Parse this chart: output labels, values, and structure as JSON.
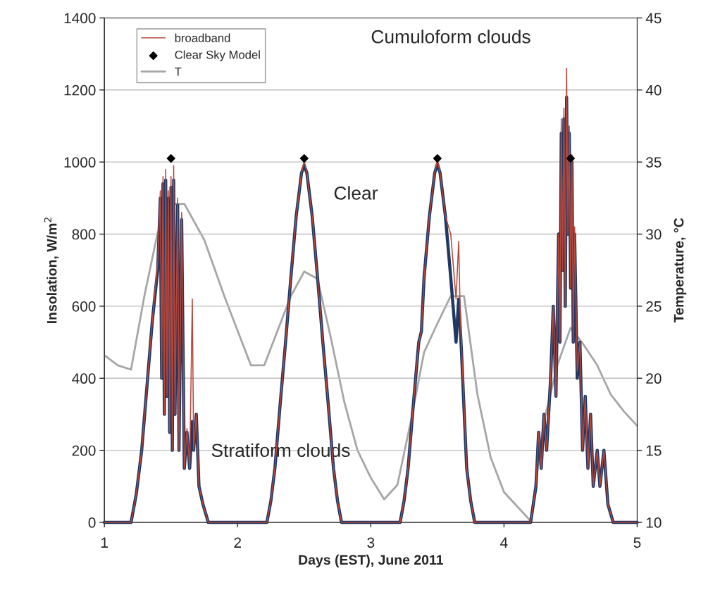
{
  "chart_data": {
    "type": "line",
    "xlabel": "Days (EST), June 2011",
    "ylabel": "Insolation, W/m$^{2}$",
    "y2label": "Temperature, °C",
    "xlim": [
      1,
      5
    ],
    "xticks": [
      1,
      2,
      3,
      4,
      5
    ],
    "ylim": [
      0,
      1400
    ],
    "yticks": [
      0,
      200,
      400,
      600,
      800,
      1000,
      1200,
      1400
    ],
    "y2lim": [
      10,
      45
    ],
    "y2ticks": [
      10,
      15,
      20,
      25,
      30,
      35,
      40,
      45
    ],
    "grid": "y",
    "legend": "top left",
    "annotations": [
      "Cumuloform clouds",
      "Clear",
      "Stratiform clouds"
    ],
    "series": [
      {
        "name": "broadband",
        "type": "line",
        "color": "#b5473a",
        "x": [
          1,
          1.2,
          1.24,
          1.28,
          1.32,
          1.36,
          1.4,
          1.42,
          1.43,
          1.44,
          1.45,
          1.46,
          1.47,
          1.48,
          1.49,
          1.5,
          1.51,
          1.52,
          1.53,
          1.55,
          1.56,
          1.58,
          1.6,
          1.62,
          1.64,
          1.66,
          1.67,
          1.69,
          1.71,
          1.74,
          1.78,
          2.22,
          2.25,
          2.28,
          2.32,
          2.36,
          2.4,
          2.44,
          2.48,
          2.5,
          2.52,
          2.56,
          2.6,
          2.64,
          2.68,
          2.72,
          2.75,
          2.78,
          3.22,
          3.25,
          3.28,
          3.32,
          3.36,
          3.38,
          3.4,
          3.44,
          3.48,
          3.5,
          3.52,
          3.56,
          3.6,
          3.64,
          3.66,
          3.67,
          3.68,
          3.72,
          3.75,
          3.78,
          4.2,
          4.24,
          4.26,
          4.28,
          4.3,
          4.32,
          4.35,
          4.37,
          4.39,
          4.41,
          4.42,
          4.43,
          4.44,
          4.45,
          4.46,
          4.47,
          4.48,
          4.49,
          4.5,
          4.51,
          4.52,
          4.53,
          4.55,
          4.57,
          4.59,
          4.61,
          4.63,
          4.65,
          4.67,
          4.7,
          4.72,
          4.75,
          4.78,
          4.82,
          5
        ],
        "values": [
          0,
          0,
          80,
          200,
          380,
          560,
          720,
          920,
          400,
          960,
          300,
          980,
          350,
          920,
          250,
          960,
          200,
          990,
          300,
          900,
          200,
          860,
          150,
          260,
          150,
          620,
          200,
          300,
          100,
          50,
          0,
          0,
          60,
          150,
          330,
          500,
          680,
          850,
          970,
          1005,
          970,
          850,
          680,
          500,
          330,
          150,
          60,
          0,
          0,
          60,
          150,
          330,
          500,
          530,
          680,
          850,
          970,
          1005,
          970,
          850,
          800,
          620,
          780,
          600,
          500,
          150,
          60,
          0,
          0,
          100,
          250,
          150,
          300,
          200,
          400,
          600,
          350,
          800,
          500,
          1120,
          700,
          1150,
          600,
          1260,
          800,
          1100,
          650,
          1020,
          500,
          820,
          420,
          500,
          200,
          350,
          150,
          300,
          100,
          200,
          100,
          200,
          50,
          0,
          0
        ]
      },
      {
        "type": "line",
        "color": "#1f3864",
        "x": [
          1,
          1.2,
          1.24,
          1.28,
          1.32,
          1.36,
          1.4,
          1.42,
          1.43,
          1.44,
          1.45,
          1.46,
          1.47,
          1.48,
          1.49,
          1.5,
          1.51,
          1.52,
          1.53,
          1.55,
          1.56,
          1.58,
          1.6,
          1.62,
          1.64,
          1.66,
          1.67,
          1.69,
          1.71,
          1.74,
          1.78,
          2.22,
          2.25,
          2.28,
          2.32,
          2.36,
          2.4,
          2.44,
          2.48,
          2.5,
          2.52,
          2.56,
          2.6,
          2.64,
          2.68,
          2.72,
          2.75,
          2.78,
          3.22,
          3.25,
          3.28,
          3.32,
          3.36,
          3.38,
          3.4,
          3.44,
          3.48,
          3.5,
          3.52,
          3.56,
          3.6,
          3.64,
          3.66,
          3.67,
          3.68,
          3.72,
          3.75,
          3.78,
          4.2,
          4.24,
          4.26,
          4.28,
          4.3,
          4.32,
          4.35,
          4.37,
          4.39,
          4.41,
          4.42,
          4.43,
          4.44,
          4.45,
          4.46,
          4.47,
          4.48,
          4.49,
          4.5,
          4.51,
          4.52,
          4.53,
          4.55,
          4.57,
          4.59,
          4.61,
          4.63,
          4.65,
          4.67,
          4.7,
          4.72,
          4.75,
          4.78,
          4.82,
          5
        ],
        "values": [
          0,
          0,
          80,
          200,
          380,
          560,
          700,
          900,
          400,
          940,
          300,
          950,
          350,
          900,
          250,
          930,
          200,
          950,
          300,
          880,
          200,
          840,
          150,
          250,
          150,
          280,
          200,
          300,
          100,
          50,
          0,
          0,
          60,
          150,
          330,
          500,
          680,
          850,
          970,
          990,
          970,
          850,
          680,
          500,
          330,
          150,
          60,
          0,
          0,
          60,
          150,
          330,
          500,
          530,
          680,
          850,
          970,
          995,
          970,
          850,
          680,
          500,
          620,
          550,
          480,
          150,
          60,
          0,
          0,
          100,
          250,
          150,
          300,
          200,
          400,
          600,
          350,
          800,
          500,
          1080,
          700,
          1120,
          600,
          1180,
          800,
          1080,
          650,
          1000,
          500,
          800,
          400,
          500,
          200,
          350,
          150,
          300,
          100,
          200,
          100,
          200,
          50,
          0,
          0
        ]
      },
      {
        "name": "Clear Sky Model",
        "type": "scatter",
        "marker": "diamond",
        "color": "#000000",
        "x": [
          1.5,
          2.5,
          3.5,
          4.5
        ],
        "values": [
          1010,
          1010,
          1010,
          1010
        ]
      },
      {
        "name": "T",
        "type": "line",
        "axis": "y2",
        "color": "#a6a6a6",
        "x": [
          1,
          1.1,
          1.2,
          1.3,
          1.4,
          1.5,
          1.6,
          1.75,
          1.9,
          2.0,
          2.1,
          2.2,
          2.3,
          2.4,
          2.5,
          2.6,
          2.7,
          2.8,
          2.9,
          3.0,
          3.1,
          3.2,
          3.3,
          3.4,
          3.5,
          3.6,
          3.7,
          3.8,
          3.9,
          4.0,
          4.1,
          4.2,
          4.3,
          4.4,
          4.5,
          4.6,
          4.7,
          4.8,
          4.9,
          5.0
        ],
        "values": [
          21.6,
          20.9,
          20.6,
          25.7,
          30.1,
          32.1,
          32.1,
          29.6,
          25.7,
          23.3,
          20.9,
          20.9,
          23.3,
          25.7,
          27.4,
          26.9,
          22.8,
          18.4,
          15.0,
          13.1,
          11.6,
          12.6,
          17.0,
          21.8,
          23.8,
          25.7,
          25.7,
          18.9,
          14.5,
          12.1,
          11.1,
          10.1,
          17.0,
          20.9,
          23.5,
          22.3,
          20.9,
          18.9,
          17.7,
          16.7
        ]
      }
    ]
  }
}
